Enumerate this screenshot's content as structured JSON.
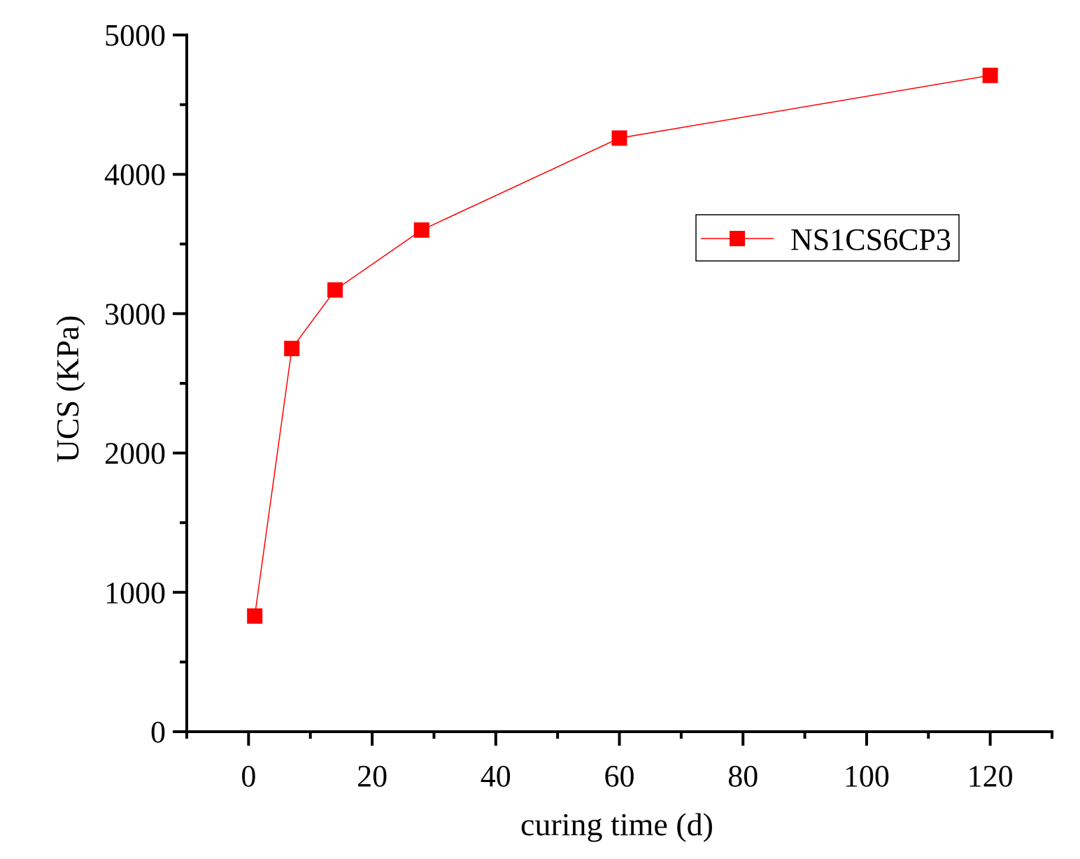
{
  "chart_data": {
    "type": "line",
    "title": "",
    "xlabel": "curing time (d)",
    "ylabel": "UCS (KPa)",
    "xlim": [
      -10,
      130
    ],
    "ylim": [
      0,
      5000
    ],
    "x_ticks": [
      0,
      20,
      40,
      60,
      80,
      100,
      120
    ],
    "x_tick_labels": [
      "0",
      "20",
      "40",
      "60",
      "80",
      "100",
      "120"
    ],
    "x_minor_ticks": [
      -10,
      10,
      30,
      50,
      70,
      90,
      110,
      130
    ],
    "y_ticks": [
      0,
      1000,
      2000,
      3000,
      4000,
      5000
    ],
    "y_tick_labels": [
      "0",
      "1000",
      "2000",
      "3000",
      "4000",
      "5000"
    ],
    "y_minor_ticks": [
      500,
      1500,
      2500,
      3500,
      4500
    ],
    "grid": false,
    "legend_position": "upper right (inside plot)",
    "x": [
      1,
      7,
      14,
      28,
      60,
      120
    ],
    "series": [
      {
        "name": "NS1CS6CP3",
        "color": "#ff0000",
        "marker": "square",
        "values": [
          830,
          2750,
          3170,
          3600,
          4260,
          4710
        ]
      }
    ]
  },
  "legend": {
    "items": [
      {
        "label": "NS1CS6CP3",
        "color": "#ff0000",
        "marker": "square"
      }
    ]
  },
  "colors": {
    "series": "#ff0000",
    "axis": "#000000",
    "background": "#ffffff"
  }
}
